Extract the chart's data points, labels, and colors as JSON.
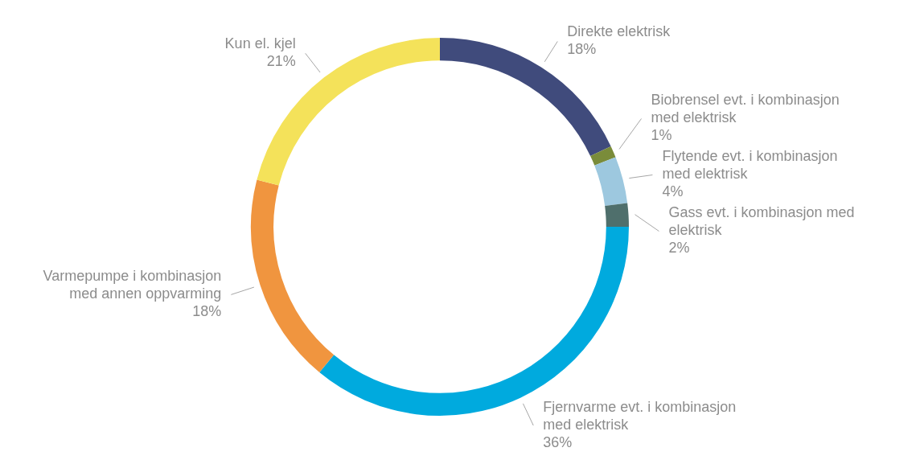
{
  "chart_data": {
    "type": "donut",
    "categories": [
      "Direkte elektrisk",
      "Biobrensel evt. i kombinasjon med elektrisk",
      "Flytende evt. i kombinasjon med elektrisk",
      "Gass evt. i kombinasjon med elektrisk",
      "Fjernvarme evt. i kombinasjon med elektrisk",
      "Varmepumpe i kombinasjon med annen oppvarming",
      "Kun el. kjel"
    ],
    "values": [
      18,
      1,
      4,
      2,
      36,
      18,
      21
    ],
    "colors": [
      "#404b7c",
      "#7a8c3a",
      "#9dc8df",
      "#4f6f6c",
      "#00aade",
      "#f0953f",
      "#f4e25a"
    ],
    "value_labels": [
      "18%",
      "1%",
      "4%",
      "2%",
      "36%",
      "18%",
      "21%"
    ],
    "legend": false
  }
}
